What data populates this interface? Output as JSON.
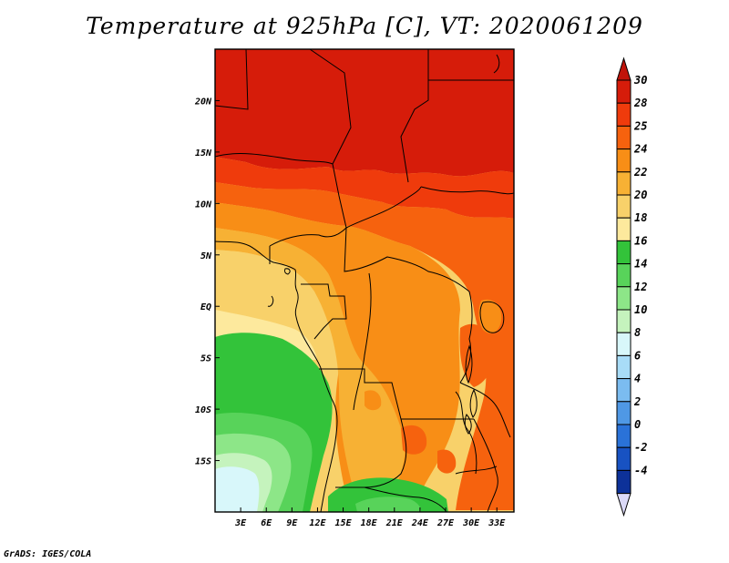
{
  "title": "Temperature at 925hPa [C], VT: 2020061209",
  "credit": "GrADS: IGES/COLA",
  "map": {
    "extent": {
      "lon_min": 0,
      "lon_max": 35,
      "lat_min": -20,
      "lat_max": 25
    },
    "x_ticks": [
      {
        "lon": 3,
        "label": "3E"
      },
      {
        "lon": 6,
        "label": "6E"
      },
      {
        "lon": 9,
        "label": "9E"
      },
      {
        "lon": 12,
        "label": "12E"
      },
      {
        "lon": 15,
        "label": "15E"
      },
      {
        "lon": 18,
        "label": "18E"
      },
      {
        "lon": 21,
        "label": "21E"
      },
      {
        "lon": 24,
        "label": "24E"
      },
      {
        "lon": 27,
        "label": "27E"
      },
      {
        "lon": 30,
        "label": "30E"
      },
      {
        "lon": 33,
        "label": "33E"
      }
    ],
    "y_ticks": [
      {
        "lat": 20,
        "label": "20N"
      },
      {
        "lat": 15,
        "label": "15N"
      },
      {
        "lat": 10,
        "label": "10N"
      },
      {
        "lat": 5,
        "label": "5N"
      },
      {
        "lat": 0,
        "label": "EQ"
      },
      {
        "lat": -5,
        "label": "5S"
      },
      {
        "lat": -10,
        "label": "10S"
      },
      {
        "lat": -15,
        "label": "15S"
      }
    ]
  },
  "colorbar": {
    "labels": [
      "30",
      "28",
      "25",
      "24",
      "22",
      "20",
      "18",
      "16",
      "14",
      "12",
      "10",
      "8",
      "6",
      "4",
      "2",
      "0",
      "-2",
      "-4"
    ],
    "colors": [
      "#d61c0a",
      "#ef3b0c",
      "#f6620e",
      "#f88e16",
      "#f7b134",
      "#f8d16a",
      "#fde99d",
      "#33c33a",
      "#58d35a",
      "#8de688",
      "#c5f3bd",
      "#d8f7fa",
      "#a8dcf7",
      "#7bbcf0",
      "#4f98e5",
      "#2a72d8",
      "#1852c2",
      "#0d3199",
      "#0a1870"
    ],
    "top_arrow_color": "#c0130a",
    "bottom_arrow_color": "#dbd9f7"
  }
}
